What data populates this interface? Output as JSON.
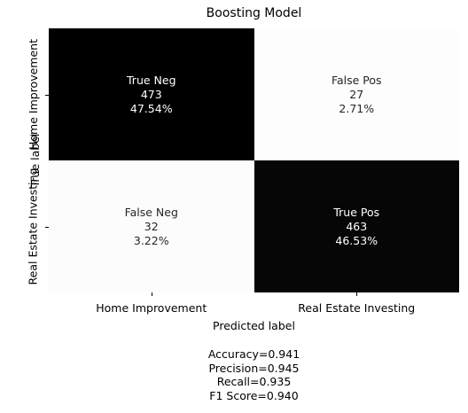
{
  "chart_data": {
    "type": "heatmap",
    "title": "Boosting Model",
    "xlabel": "Predicted label",
    "ylabel": "True label",
    "x_categories": [
      "Home Improvement",
      "Real Estate Investing"
    ],
    "y_categories": [
      "Home Improvement",
      "Real Estate Investing"
    ],
    "colormap": "binary (high = black, low = white)",
    "cells": [
      [
        {
          "name": "True Neg",
          "count": "473",
          "percent": "47.54%",
          "value": 473
        },
        {
          "name": "False Pos",
          "count": "27",
          "percent": "2.71%",
          "value": 27
        }
      ],
      [
        {
          "name": "False Neg",
          "count": "32",
          "percent": "3.22%",
          "value": 32
        },
        {
          "name": "True Pos",
          "count": "463",
          "percent": "46.53%",
          "value": 463
        }
      ]
    ],
    "metrics": [
      "Accuracy=0.941",
      "Precision=0.945",
      "Recall=0.935",
      "F1 Score=0.940"
    ]
  }
}
